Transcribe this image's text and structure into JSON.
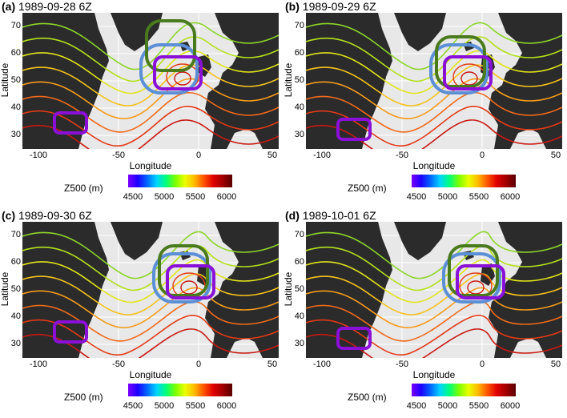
{
  "panels": [
    {
      "letter": "(a)",
      "date": "1989-09-28 6Z"
    },
    {
      "letter": "(b)",
      "date": "1989-09-29 6Z"
    },
    {
      "letter": "(c)",
      "date": "1989-09-30 6Z"
    },
    {
      "letter": "(d)",
      "date": "1989-10-01 6Z"
    }
  ],
  "axes": {
    "xlabel": "Longitude",
    "ylabel": "Latitude",
    "xticks": [
      "-100",
      "-50",
      "0",
      "50"
    ],
    "yticks": [
      "70",
      "60",
      "50",
      "40",
      "30"
    ]
  },
  "legend": {
    "label": "Z500 (m)",
    "ticks": [
      "4500",
      "5000",
      "5500",
      "6000"
    ]
  },
  "colors": {
    "land": "#2b2b2b",
    "ocean": "#e8e8e8",
    "blue_contour": "#5b8fd6",
    "green_contour": "#4a7a1e",
    "purple_contour": "#8a10d8"
  }
}
